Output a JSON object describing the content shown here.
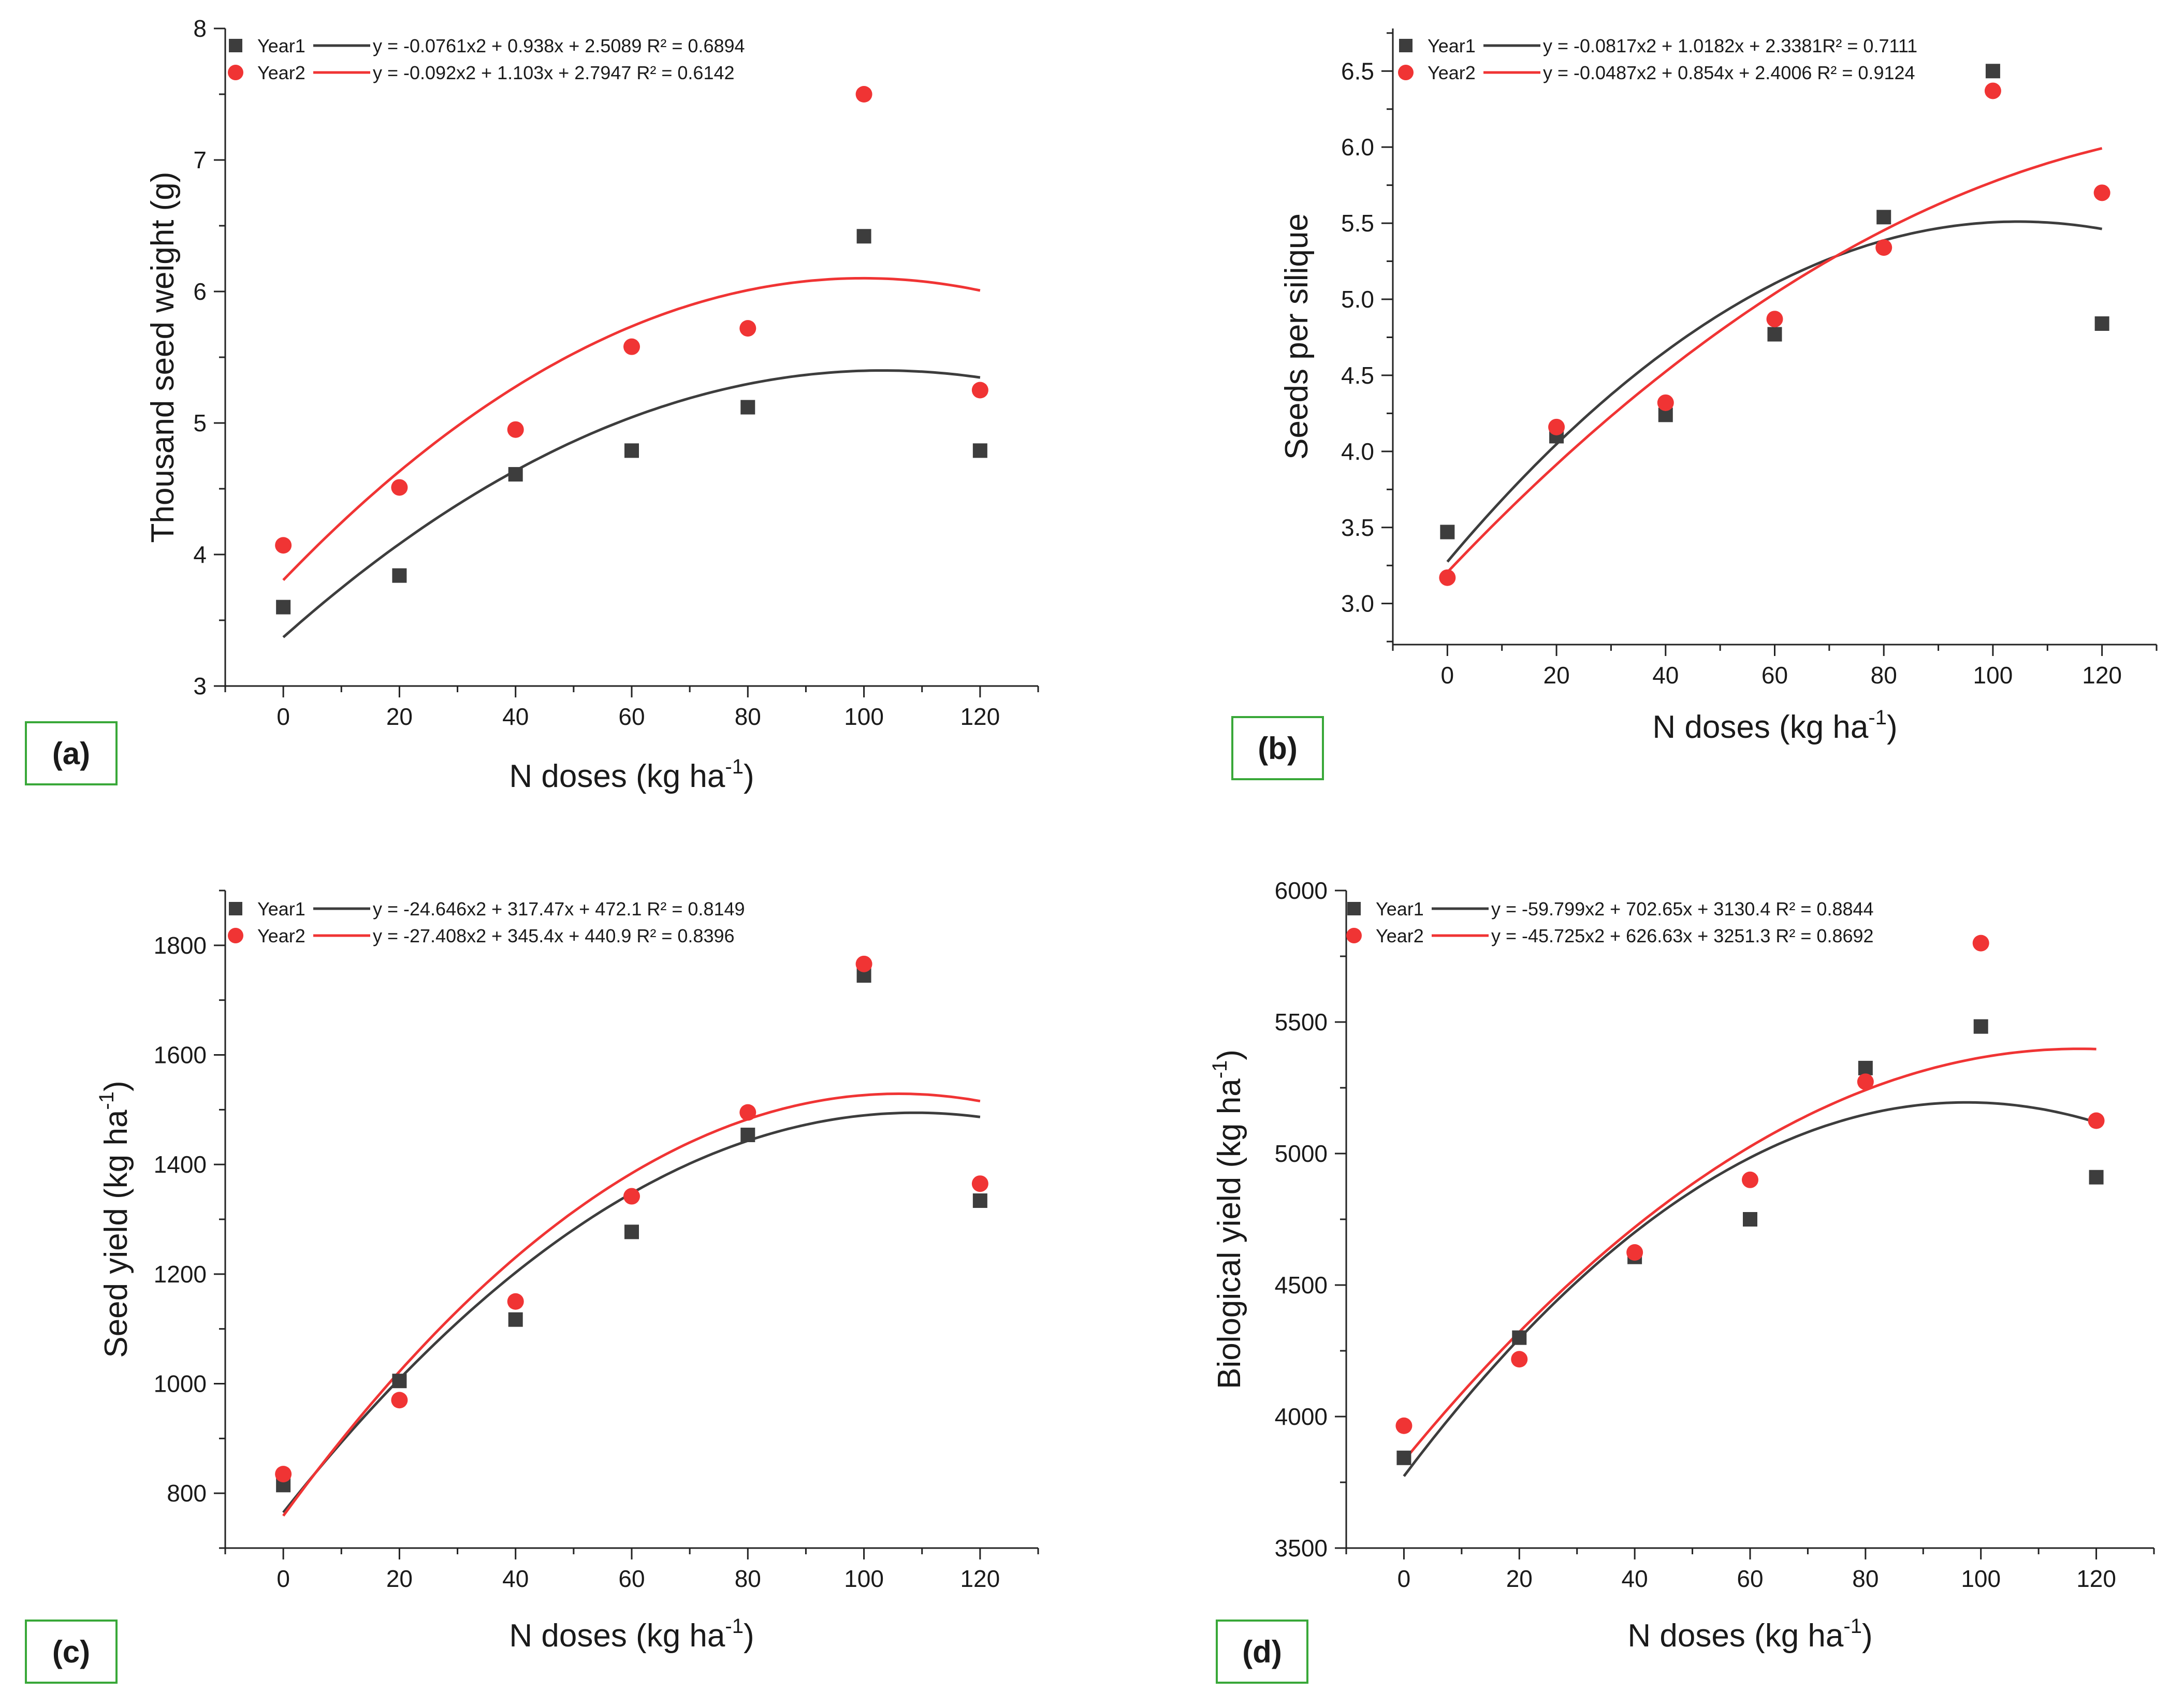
{
  "colors": {
    "year1": "#3d3d3d",
    "year2": "#f03434",
    "label_box": "#39a839",
    "axis": "#222222"
  },
  "chart_data": [
    {
      "id": "a",
      "type": "scatter",
      "panel_label": "(a)",
      "xlabel": "N doses (kg ha",
      "xlabel_sup": "-1",
      "xlabel_close": ")",
      "ylabel": "Thousand seed weight (g)",
      "ylabel_sup": "",
      "ylabel_close": "",
      "xlim": [
        -10,
        130
      ],
      "ylim": [
        3,
        8
      ],
      "xticks": [
        0,
        20,
        40,
        60,
        80,
        100,
        120
      ],
      "yticks": [
        3,
        4,
        5,
        6,
        7,
        8
      ],
      "x": [
        0,
        20,
        40,
        60,
        80,
        100,
        120
      ],
      "series": [
        {
          "name": "Year1",
          "marker": "square",
          "values": [
            3.6,
            3.84,
            4.61,
            4.79,
            5.12,
            6.42,
            4.79
          ],
          "fit_label": "y = -0.0761x2 + 0.938x + 2.5089 R² = 0.6894",
          "fit": [
            -0.0761,
            0.938,
            2.5089
          ]
        },
        {
          "name": "Year2",
          "marker": "circle",
          "values": [
            4.07,
            4.51,
            4.95,
            5.58,
            5.72,
            7.5,
            5.25
          ],
          "fit_label": "y = -0.092x2 + 1.103x + 2.7947  R² = 0.6142",
          "fit": [
            -0.092,
            1.103,
            2.7947
          ]
        }
      ]
    },
    {
      "id": "b",
      "type": "scatter",
      "panel_label": "(b)",
      "xlabel": "N doses (kg ha",
      "xlabel_sup": "-1",
      "xlabel_close": ")",
      "ylabel": "Seeds per silique",
      "ylabel_sup": "",
      "ylabel_close": "",
      "xlim": [
        -10,
        130
      ],
      "ylim": [
        2.73,
        6.78
      ],
      "xticks": [
        0,
        20,
        40,
        60,
        80,
        100,
        120
      ],
      "yticks": [
        3.0,
        3.5,
        4.0,
        4.5,
        5.0,
        5.5,
        6.0,
        6.5
      ],
      "tick_decimals": 1,
      "x": [
        0,
        20,
        40,
        60,
        80,
        100,
        120
      ],
      "series": [
        {
          "name": "Year1",
          "marker": "square",
          "values": [
            3.47,
            4.1,
            4.24,
            4.77,
            5.54,
            6.5,
            4.84
          ],
          "fit_label": "y = -0.0817x2 + 1.0182x + 2.3381R² = 0.7111",
          "fit": [
            -0.0817,
            1.0182,
            2.3381
          ]
        },
        {
          "name": "Year2",
          "marker": "circle",
          "values": [
            3.17,
            4.16,
            4.32,
            4.87,
            5.34,
            6.37,
            5.7
          ],
          "fit_label": "y = -0.0487x2 + 0.854x + 2.4006 R² = 0.9124",
          "fit": [
            -0.0487,
            0.854,
            2.4006
          ]
        }
      ]
    },
    {
      "id": "c",
      "type": "scatter",
      "panel_label": "(c)",
      "xlabel": "N doses (kg ha",
      "xlabel_sup": "-1",
      "xlabel_close": ")",
      "ylabel": "Seed yield (kg ha",
      "ylabel_sup": "-1",
      "ylabel_close": ")",
      "xlim": [
        -10,
        130
      ],
      "ylim": [
        700,
        1900
      ],
      "xticks": [
        0,
        20,
        40,
        60,
        80,
        100,
        120
      ],
      "yticks": [
        800,
        1000,
        1200,
        1400,
        1600,
        1800
      ],
      "x": [
        0,
        20,
        40,
        60,
        80,
        100,
        120
      ],
      "series": [
        {
          "name": "Year1",
          "marker": "square",
          "values": [
            815,
            1005,
            1117,
            1277,
            1454,
            1745,
            1334
          ],
          "fit_label": "y = -24.646x2 + 317.47x + 472.1 R² = 0.8149",
          "fit": [
            -24.646,
            317.47,
            472.1
          ]
        },
        {
          "name": "Year2",
          "marker": "circle",
          "values": [
            835,
            970,
            1150,
            1342,
            1495,
            1766,
            1365
          ],
          "fit_label": "y = -27.408x2 + 345.4x + 440.9  R² = 0.8396",
          "fit": [
            -27.408,
            345.4,
            440.9
          ]
        }
      ]
    },
    {
      "id": "d",
      "type": "scatter",
      "panel_label": "(d)",
      "xlabel": "N doses (kg ha",
      "xlabel_sup": "-1",
      "xlabel_close": ")",
      "ylabel": "Biological yield (kg ha",
      "ylabel_sup": "-1",
      "ylabel_close": ")",
      "xlim": [
        -10,
        130
      ],
      "ylim": [
        3500,
        6000
      ],
      "xticks": [
        0,
        20,
        40,
        60,
        80,
        100,
        120
      ],
      "yticks": [
        3500,
        4000,
        4500,
        5000,
        5500,
        6000
      ],
      "x": [
        0,
        20,
        40,
        60,
        80,
        100,
        120
      ],
      "series": [
        {
          "name": "Year1",
          "marker": "square",
          "values": [
            3843,
            4300,
            4607,
            4750,
            5325,
            5483,
            4910
          ],
          "fit_label": "y = -59.799x2 + 702.65x + 3130.4 R² = 0.8844",
          "fit": [
            -59.799,
            702.65,
            3130.4
          ]
        },
        {
          "name": "Year2",
          "marker": "circle",
          "values": [
            3965,
            4218,
            4624,
            4900,
            5273,
            5800,
            5125
          ],
          "fit_label": "y = -45.725x2 + 626.63x + 3251.3 R² = 0.8692",
          "fit": [
            -45.725,
            626.63,
            3251.3
          ]
        }
      ]
    }
  ]
}
